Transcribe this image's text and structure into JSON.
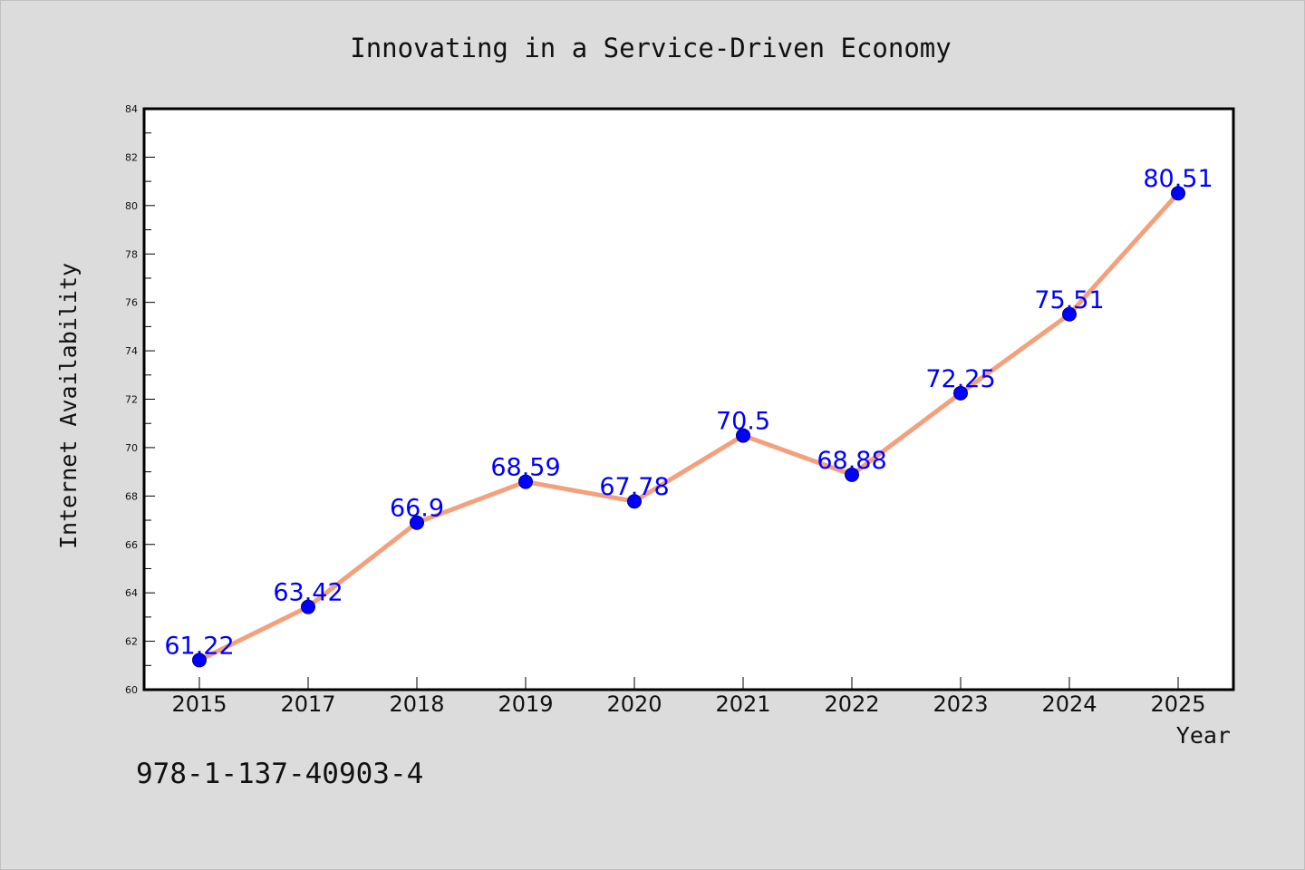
{
  "colors": {
    "background": "#dcdcdc",
    "plot_background": "#ffffff",
    "axes": "#000000",
    "line": "#f4a07c",
    "marker": "#0000ff",
    "data_label": "#0000ff"
  },
  "footer": {
    "text": "978-1-137-40903-4"
  },
  "chart_data": {
    "type": "line",
    "title": "Innovating in a Service-Driven Economy",
    "xlabel": "Year",
    "ylabel": "Internet Availability",
    "categories": [
      "2015",
      "2017",
      "2018",
      "2019",
      "2020",
      "2021",
      "2022",
      "2023",
      "2024",
      "2025"
    ],
    "series": [
      {
        "values": [
          61.22,
          63.42,
          66.9,
          68.59,
          67.78,
          70.5,
          68.88,
          72.25,
          75.51,
          80.51
        ],
        "data_labels": [
          "61.22",
          "63.42",
          "66.9",
          "68.59",
          "67.78",
          "70.5",
          "68.88",
          "72.25",
          "75.51",
          "80.51"
        ]
      }
    ],
    "ylim": [
      60,
      84
    ],
    "yticks": [
      "60",
      "62",
      "64",
      "66",
      "68",
      "70",
      "72",
      "74",
      "76",
      "78",
      "80",
      "82",
      "84"
    ],
    "grid": false,
    "legend": "none",
    "marker": "circle"
  }
}
